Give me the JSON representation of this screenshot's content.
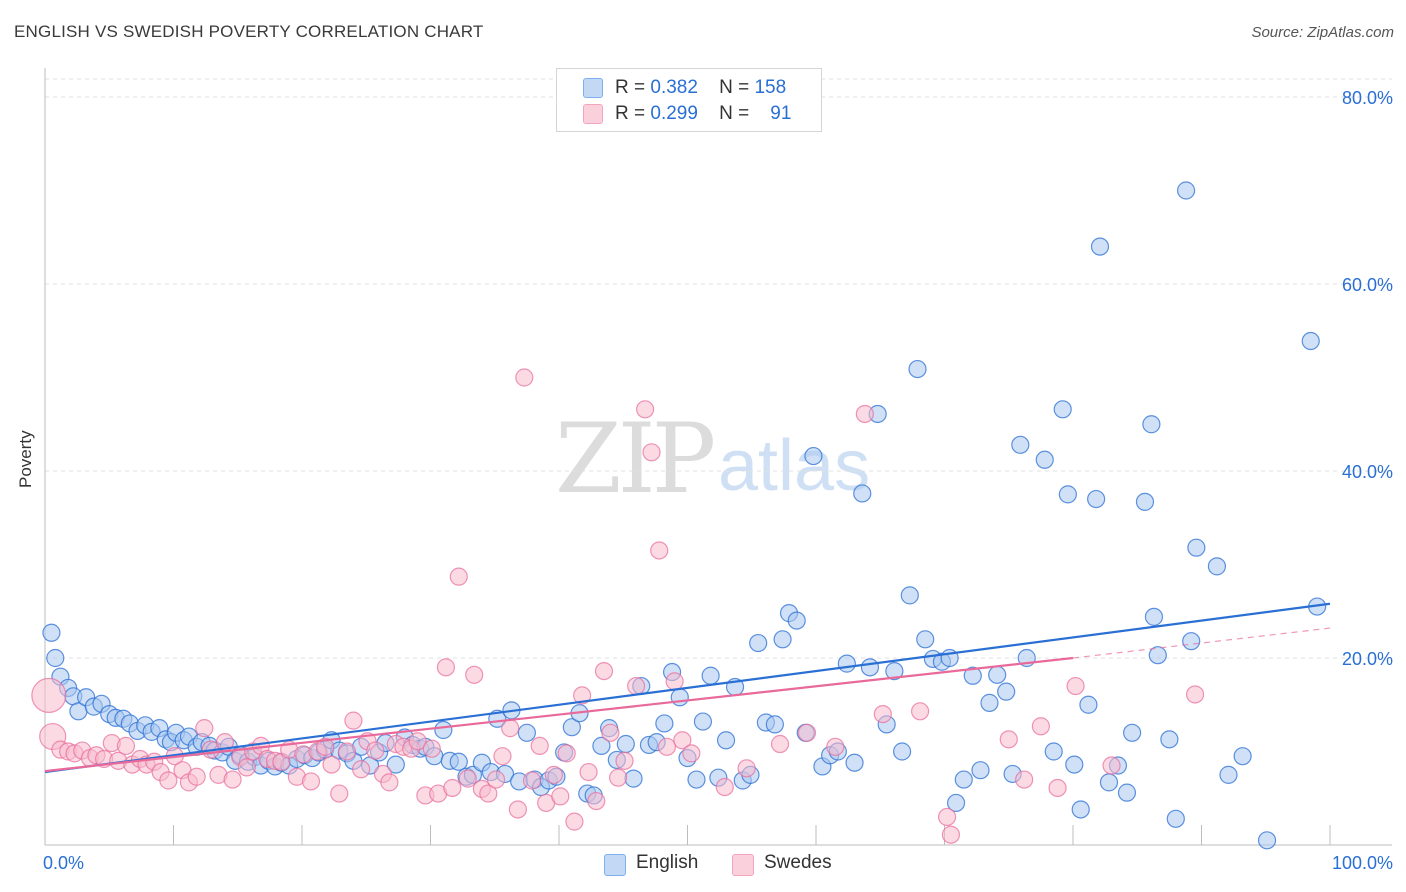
{
  "header": {
    "title": "ENGLISH VS SWEDISH POVERTY CORRELATION CHART",
    "source": "Source: ZipAtlas.com"
  },
  "watermark": {
    "zip": "ZIP",
    "atlas": "atlas"
  },
  "legend": {
    "rows": [
      {
        "r_label": "R =",
        "r_value": "0.382",
        "n_label": "N =",
        "n_value": "158",
        "color": "#7fb0ee"
      },
      {
        "r_label": "R =",
        "r_value": "0.299",
        "n_label": "N =",
        "n_value": "91",
        "color": "#f4a5bd"
      }
    ]
  },
  "bottom_legend": {
    "english": "English",
    "swedes": "Swedes"
  },
  "chart_data": {
    "type": "scatter",
    "title": "ENGLISH VS SWEDISH POVERTY CORRELATION CHART",
    "xlabel": "",
    "ylabel": "Poverty",
    "xlim": [
      0,
      100
    ],
    "ylim": [
      0,
      80
    ],
    "x_tick_labels": [
      "0.0%",
      "100.0%"
    ],
    "y_tick_labels": [
      "20.0%",
      "40.0%",
      "60.0%",
      "80.0%"
    ],
    "y_ticks": [
      20,
      40,
      60,
      80
    ],
    "grid": true,
    "colors": {
      "english": "#2a6fd4",
      "english_fill": "#a9c8f0",
      "swedes": "#e8699a",
      "swedes_fill": "#f7bccd"
    },
    "series": [
      {
        "name": "English",
        "trend": {
          "x0": 0,
          "y0": 7.8,
          "x1": 100,
          "y1": 25.8
        },
        "points": [
          [
            0.5,
            22.7
          ],
          [
            0.8,
            20.0
          ],
          [
            1.2,
            18.0
          ],
          [
            1.8,
            16.8
          ],
          [
            2.2,
            15.9
          ],
          [
            2.6,
            14.3
          ],
          [
            3.2,
            15.8
          ],
          [
            3.8,
            14.8
          ],
          [
            4.4,
            15.1
          ],
          [
            5.0,
            14.0
          ],
          [
            5.5,
            13.6
          ],
          [
            6.1,
            13.5
          ],
          [
            6.6,
            13.0
          ],
          [
            7.2,
            12.2
          ],
          [
            7.8,
            12.8
          ],
          [
            8.3,
            12.1
          ],
          [
            8.9,
            12.5
          ],
          [
            9.4,
            11.3
          ],
          [
            9.8,
            11.0
          ],
          [
            10.2,
            12.0
          ],
          [
            10.8,
            11.2
          ],
          [
            11.2,
            11.6
          ],
          [
            11.8,
            10.5
          ],
          [
            12.2,
            11.0
          ],
          [
            12.8,
            10.6
          ],
          [
            13.2,
            10.1
          ],
          [
            13.8,
            9.9
          ],
          [
            14.3,
            10.5
          ],
          [
            14.8,
            9.0
          ],
          [
            15.2,
            9.6
          ],
          [
            15.8,
            8.9
          ],
          [
            16.3,
            9.4
          ],
          [
            16.8,
            8.5
          ],
          [
            17.4,
            9.0
          ],
          [
            17.9,
            8.4
          ],
          [
            18.4,
            8.8
          ],
          [
            19.0,
            8.5
          ],
          [
            19.6,
            9.2
          ],
          [
            20.2,
            9.6
          ],
          [
            20.8,
            9.3
          ],
          [
            21.3,
            9.9
          ],
          [
            21.8,
            10.2
          ],
          [
            22.3,
            11.2
          ],
          [
            22.9,
            10.1
          ],
          [
            23.5,
            9.8
          ],
          [
            24.0,
            9.0
          ],
          [
            24.6,
            10.5
          ],
          [
            25.3,
            8.5
          ],
          [
            26.0,
            9.9
          ],
          [
            26.5,
            10.9
          ],
          [
            27.3,
            8.6
          ],
          [
            28.0,
            11.5
          ],
          [
            28.6,
            10.7
          ],
          [
            29.2,
            10.3
          ],
          [
            29.6,
            10.5
          ],
          [
            30.3,
            9.5
          ],
          [
            31.0,
            12.3
          ],
          [
            31.5,
            9.0
          ],
          [
            32.2,
            8.9
          ],
          [
            32.8,
            7.3
          ],
          [
            33.3,
            7.5
          ],
          [
            34.0,
            8.8
          ],
          [
            34.7,
            7.8
          ],
          [
            35.2,
            13.5
          ],
          [
            35.8,
            7.6
          ],
          [
            36.3,
            14.4
          ],
          [
            36.9,
            6.8
          ],
          [
            37.5,
            12.0
          ],
          [
            38.1,
            7.0
          ],
          [
            38.6,
            6.2
          ],
          [
            39.2,
            6.9
          ],
          [
            39.8,
            7.3
          ],
          [
            40.4,
            9.9
          ],
          [
            41.0,
            12.6
          ],
          [
            41.6,
            14.1
          ],
          [
            42.2,
            5.5
          ],
          [
            42.7,
            5.3
          ],
          [
            43.3,
            10.6
          ],
          [
            43.9,
            12.5
          ],
          [
            44.5,
            9.1
          ],
          [
            45.2,
            10.8
          ],
          [
            45.8,
            7.1
          ],
          [
            46.4,
            17.0
          ],
          [
            47.0,
            10.7
          ],
          [
            47.6,
            11.0
          ],
          [
            48.2,
            13.0
          ],
          [
            48.8,
            18.5
          ],
          [
            49.4,
            15.8
          ],
          [
            50.0,
            9.3
          ],
          [
            50.7,
            7.0
          ],
          [
            51.2,
            13.2
          ],
          [
            51.8,
            18.1
          ],
          [
            52.4,
            7.2
          ],
          [
            53.0,
            11.2
          ],
          [
            53.7,
            16.9
          ],
          [
            54.3,
            6.9
          ],
          [
            54.9,
            7.5
          ],
          [
            55.5,
            21.6
          ],
          [
            56.1,
            13.1
          ],
          [
            56.8,
            12.9
          ],
          [
            57.4,
            22.0
          ],
          [
            57.9,
            24.8
          ],
          [
            58.5,
            24.0
          ],
          [
            59.2,
            12.0
          ],
          [
            59.8,
            41.6
          ],
          [
            60.5,
            8.4
          ],
          [
            61.1,
            9.6
          ],
          [
            61.7,
            10.0
          ],
          [
            62.4,
            19.4
          ],
          [
            63.0,
            8.8
          ],
          [
            63.6,
            37.6
          ],
          [
            64.2,
            19.0
          ],
          [
            64.8,
            46.1
          ],
          [
            65.5,
            12.9
          ],
          [
            66.1,
            18.6
          ],
          [
            66.7,
            10.0
          ],
          [
            67.3,
            26.7
          ],
          [
            67.9,
            50.9
          ],
          [
            68.5,
            22.0
          ],
          [
            69.1,
            19.9
          ],
          [
            69.8,
            19.6
          ],
          [
            70.4,
            20.0
          ],
          [
            70.9,
            4.5
          ],
          [
            71.5,
            7.0
          ],
          [
            72.2,
            18.1
          ],
          [
            72.8,
            8.0
          ],
          [
            73.5,
            15.2
          ],
          [
            74.1,
            18.2
          ],
          [
            74.8,
            16.4
          ],
          [
            75.3,
            7.6
          ],
          [
            75.9,
            42.8
          ],
          [
            76.4,
            20.0
          ],
          [
            77.8,
            41.2
          ],
          [
            78.5,
            10.0
          ],
          [
            79.2,
            46.6
          ],
          [
            79.6,
            37.5
          ],
          [
            80.1,
            8.6
          ],
          [
            80.6,
            3.8
          ],
          [
            81.2,
            15.0
          ],
          [
            81.8,
            37.0
          ],
          [
            82.1,
            64.0
          ],
          [
            82.8,
            6.7
          ],
          [
            83.5,
            8.5
          ],
          [
            84.2,
            5.6
          ],
          [
            84.6,
            12.0
          ],
          [
            85.6,
            36.7
          ],
          [
            86.1,
            45.0
          ],
          [
            86.3,
            24.4
          ],
          [
            86.6,
            20.3
          ],
          [
            87.5,
            11.3
          ],
          [
            88.0,
            2.8
          ],
          [
            88.8,
            70.0
          ],
          [
            89.2,
            21.8
          ],
          [
            89.6,
            31.8
          ],
          [
            91.2,
            29.8
          ],
          [
            92.1,
            7.5
          ],
          [
            93.2,
            9.5
          ],
          [
            95.1,
            0.5
          ],
          [
            98.5,
            53.9
          ],
          [
            99.0,
            25.5
          ]
        ]
      },
      {
        "name": "Swedes",
        "trend": {
          "x0": 0,
          "y0": 7.9,
          "x1": 80,
          "y1": 20.0,
          "dash_x1": 100,
          "dash_y1": 23.2
        },
        "points": [
          [
            0.3,
            16.0
          ],
          [
            0.6,
            11.6
          ],
          [
            1.2,
            10.2
          ],
          [
            1.8,
            10.0
          ],
          [
            2.3,
            9.8
          ],
          [
            2.9,
            10.1
          ],
          [
            3.5,
            9.3
          ],
          [
            4.0,
            9.6
          ],
          [
            4.6,
            9.2
          ],
          [
            5.2,
            10.9
          ],
          [
            5.7,
            9.0
          ],
          [
            6.3,
            10.6
          ],
          [
            6.8,
            8.6
          ],
          [
            7.4,
            9.2
          ],
          [
            7.9,
            8.6
          ],
          [
            8.5,
            8.9
          ],
          [
            9.0,
            7.8
          ],
          [
            9.6,
            6.9
          ],
          [
            10.1,
            9.5
          ],
          [
            10.7,
            8.0
          ],
          [
            11.2,
            6.7
          ],
          [
            11.8,
            7.3
          ],
          [
            12.4,
            12.5
          ],
          [
            12.9,
            10.2
          ],
          [
            13.5,
            7.5
          ],
          [
            14.0,
            11.0
          ],
          [
            14.6,
            7.0
          ],
          [
            15.2,
            9.4
          ],
          [
            15.7,
            8.3
          ],
          [
            16.2,
            10.0
          ],
          [
            16.8,
            10.6
          ],
          [
            17.3,
            9.2
          ],
          [
            17.9,
            9.0
          ],
          [
            18.4,
            8.9
          ],
          [
            19.0,
            10.2
          ],
          [
            19.6,
            7.3
          ],
          [
            20.1,
            9.7
          ],
          [
            20.7,
            6.8
          ],
          [
            21.2,
            10.0
          ],
          [
            21.8,
            10.5
          ],
          [
            22.3,
            8.6
          ],
          [
            22.9,
            5.5
          ],
          [
            23.5,
            10.0
          ],
          [
            24.0,
            13.3
          ],
          [
            24.6,
            8.1
          ],
          [
            25.1,
            11.1
          ],
          [
            25.7,
            10.1
          ],
          [
            26.3,
            7.6
          ],
          [
            26.8,
            6.7
          ],
          [
            27.3,
            10.8
          ],
          [
            27.9,
            10.5
          ],
          [
            28.5,
            10.3
          ],
          [
            29.0,
            11.1
          ],
          [
            29.6,
            5.3
          ],
          [
            30.1,
            10.3
          ],
          [
            30.6,
            5.5
          ],
          [
            31.2,
            19.0
          ],
          [
            31.7,
            6.1
          ],
          [
            32.2,
            28.7
          ],
          [
            32.9,
            7.1
          ],
          [
            33.4,
            18.2
          ],
          [
            34.0,
            6.0
          ],
          [
            34.5,
            5.5
          ],
          [
            35.1,
            7.0
          ],
          [
            35.6,
            9.5
          ],
          [
            36.2,
            12.5
          ],
          [
            36.8,
            3.8
          ],
          [
            37.3,
            50.0
          ],
          [
            37.9,
            6.9
          ],
          [
            38.5,
            10.6
          ],
          [
            39.0,
            4.5
          ],
          [
            39.6,
            7.5
          ],
          [
            40.1,
            5.2
          ],
          [
            40.6,
            9.8
          ],
          [
            41.2,
            2.5
          ],
          [
            41.8,
            16.0
          ],
          [
            42.3,
            7.8
          ],
          [
            42.9,
            4.7
          ],
          [
            43.5,
            18.6
          ],
          [
            44.0,
            12.0
          ],
          [
            44.6,
            7.2
          ],
          [
            45.1,
            9.0
          ],
          [
            46.0,
            17.0
          ],
          [
            46.7,
            46.6
          ],
          [
            47.2,
            42.0
          ],
          [
            47.8,
            31.5
          ],
          [
            48.4,
            10.5
          ],
          [
            49.0,
            17.5
          ],
          [
            49.6,
            11.2
          ],
          [
            50.3,
            9.8
          ],
          [
            52.9,
            6.2
          ],
          [
            54.6,
            8.2
          ],
          [
            57.2,
            10.8
          ],
          [
            59.3,
            12.0
          ],
          [
            61.5,
            10.5
          ],
          [
            63.8,
            46.1
          ],
          [
            65.2,
            14.0
          ],
          [
            68.1,
            14.3
          ],
          [
            70.2,
            3.0
          ],
          [
            70.5,
            1.1
          ],
          [
            75.0,
            11.3
          ],
          [
            76.2,
            7.0
          ],
          [
            77.5,
            12.7
          ],
          [
            78.8,
            6.1
          ],
          [
            80.2,
            17.0
          ],
          [
            83.0,
            8.5
          ],
          [
            89.5,
            16.1
          ]
        ]
      }
    ]
  }
}
